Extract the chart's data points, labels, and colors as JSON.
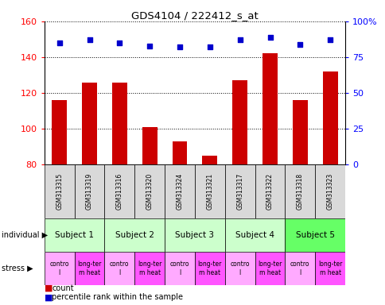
{
  "title": "GDS4104 / 222412_s_at",
  "samples": [
    "GSM313315",
    "GSM313319",
    "GSM313316",
    "GSM313320",
    "GSM313324",
    "GSM313321",
    "GSM313317",
    "GSM313322",
    "GSM313318",
    "GSM313323"
  ],
  "counts": [
    116,
    126,
    126,
    101,
    93,
    85,
    127,
    142,
    116,
    132
  ],
  "percentile_ranks": [
    85,
    87,
    85,
    83,
    82,
    82,
    87,
    89,
    84,
    87
  ],
  "ylim_left": [
    80,
    160
  ],
  "ylim_right": [
    0,
    100
  ],
  "yticks_left": [
    80,
    100,
    120,
    140,
    160
  ],
  "yticks_right": [
    0,
    25,
    50,
    75,
    100
  ],
  "bar_color": "#cc0000",
  "dot_color": "#0000cc",
  "bar_width": 0.5,
  "subject_names": [
    "Subject 1",
    "Subject 2",
    "Subject 3",
    "Subject 4",
    "Subject 5"
  ],
  "subject_colors": [
    "#ccffcc",
    "#ccffcc",
    "#ccffcc",
    "#ccffcc",
    "#66ff66"
  ],
  "stress_labels_odd": "contro\nl",
  "stress_labels_even": "long-ter\nm heat",
  "stress_color_odd": "#ffaaff",
  "stress_color_even": "#ff55ff",
  "legend_count_color": "#cc0000",
  "legend_pct_color": "#0000cc",
  "background_color": "#ffffff"
}
